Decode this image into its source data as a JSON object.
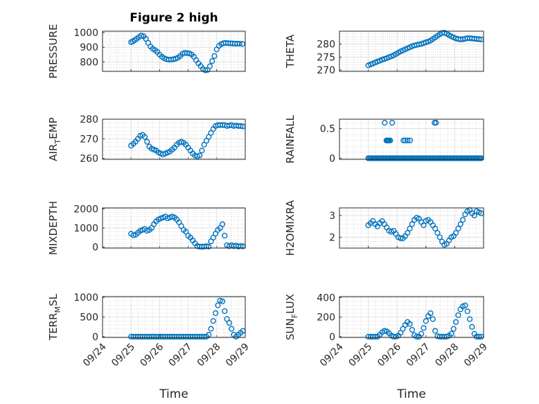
{
  "chart_data": [
    {
      "type": "scatter",
      "title": "Figure 2 high",
      "ylabel": "PRESSURE",
      "ylabel_sub": "",
      "ylabel_tail": "",
      "ylim": [
        735,
        1010
      ],
      "yticks": [
        800,
        900,
        1000
      ],
      "yticklabels": [
        "800",
        "900",
        "1000"
      ],
      "show_xticks": false,
      "xlabel": "",
      "x": [
        25.0,
        25.06,
        25.12,
        25.2,
        25.28,
        25.36,
        25.44,
        25.52,
        25.6,
        25.68,
        25.76,
        25.84,
        25.92,
        26.0,
        26.08,
        26.16,
        26.24,
        26.32,
        26.4,
        26.48,
        26.56,
        26.64,
        26.72,
        26.8,
        26.88,
        26.96,
        27.04,
        27.12,
        27.2,
        27.28,
        27.36,
        27.44,
        27.52,
        27.6,
        27.68,
        27.76,
        27.84,
        27.92,
        28.0,
        28.08,
        28.16,
        28.24,
        28.32,
        28.4,
        28.48,
        28.56,
        28.64,
        28.72,
        28.8,
        28.9
      ],
      "y": [
        935,
        940,
        948,
        958,
        970,
        980,
        975,
        958,
        930,
        905,
        890,
        880,
        868,
        850,
        835,
        825,
        818,
        815,
        816,
        818,
        822,
        828,
        840,
        855,
        862,
        860,
        858,
        850,
        835,
        812,
        790,
        772,
        752,
        742,
        745,
        770,
        805,
        840,
        885,
        910,
        922,
        928,
        930,
        928,
        927,
        926,
        925,
        925,
        925,
        923
      ]
    },
    {
      "type": "scatter",
      "title": "",
      "ylabel": "THETA",
      "ylabel_sub": "",
      "ylabel_tail": "",
      "ylim": [
        269.5,
        285
      ],
      "yticks": [
        270,
        275,
        280
      ],
      "yticklabels": [
        "270",
        "275",
        "280"
      ],
      "show_xticks": false,
      "xlabel": "",
      "x": [
        25.0,
        25.08,
        25.16,
        25.24,
        25.32,
        25.4,
        25.48,
        25.56,
        25.64,
        25.72,
        25.8,
        25.88,
        25.96,
        26.04,
        26.12,
        26.2,
        26.28,
        26.36,
        26.44,
        26.52,
        26.6,
        26.68,
        26.76,
        26.84,
        26.92,
        27.0,
        27.08,
        27.16,
        27.24,
        27.32,
        27.4,
        27.48,
        27.56,
        27.64,
        27.72,
        27.8,
        27.88,
        27.96,
        28.04,
        28.12,
        28.2,
        28.28,
        28.36,
        28.44,
        28.52,
        28.6,
        28.68,
        28.76,
        28.84,
        28.92
      ],
      "y": [
        271.8,
        272.2,
        272.5,
        272.9,
        273.3,
        273.6,
        274.0,
        274.3,
        274.6,
        275.0,
        275.3,
        275.7,
        276.2,
        276.7,
        277.2,
        277.6,
        278.0,
        278.4,
        278.8,
        279.2,
        279.5,
        279.7,
        279.9,
        280.1,
        280.4,
        280.7,
        281.0,
        281.4,
        282.0,
        282.6,
        283.2,
        283.8,
        284.3,
        284.4,
        284.0,
        283.5,
        283.0,
        282.6,
        282.2,
        282.0,
        281.8,
        281.9,
        282.1,
        282.3,
        282.3,
        282.2,
        282.1,
        282.0,
        281.9,
        281.8
      ]
    },
    {
      "type": "scatter",
      "title": "",
      "ylabel": "AIR",
      "ylabel_sub": "T",
      "ylabel_tail": "EMP",
      "ylim": [
        259.5,
        280
      ],
      "yticks": [
        260,
        270,
        280
      ],
      "yticklabels": [
        "260",
        "270",
        "280"
      ],
      "show_xticks": false,
      "xlabel": "",
      "x": [
        25.0,
        25.08,
        25.16,
        25.24,
        25.32,
        25.4,
        25.48,
        25.56,
        25.64,
        25.72,
        25.8,
        25.88,
        25.96,
        26.04,
        26.12,
        26.2,
        26.28,
        26.36,
        26.44,
        26.52,
        26.6,
        26.68,
        26.76,
        26.84,
        26.92,
        27.0,
        27.08,
        27.16,
        27.24,
        27.32,
        27.4,
        27.48,
        27.56,
        27.64,
        27.72,
        27.8,
        27.88,
        27.96,
        28.04,
        28.12,
        28.2,
        28.28,
        28.36,
        28.44,
        28.52,
        28.6,
        28.68,
        28.76,
        28.84,
        28.92
      ],
      "y": [
        266.5,
        267.5,
        268.5,
        270.0,
        271.5,
        272.0,
        271.0,
        268.5,
        266.0,
        265.0,
        264.5,
        264.0,
        263.0,
        262.5,
        262.0,
        262.5,
        263.0,
        263.5,
        264.5,
        265.5,
        267.0,
        268.0,
        268.5,
        268.0,
        267.0,
        265.5,
        264.0,
        262.5,
        261.5,
        261.0,
        261.5,
        264.0,
        267.0,
        269.0,
        271.0,
        273.0,
        275.0,
        276.5,
        277.0,
        277.0,
        277.0,
        277.0,
        276.5,
        276.8,
        277.0,
        276.5,
        276.8,
        276.5,
        276.5,
        276.3
      ]
    },
    {
      "type": "scatter",
      "title": "",
      "ylabel": "RAINFALL",
      "ylabel_sub": "",
      "ylabel_tail": "",
      "ylim": [
        -0.02,
        0.66
      ],
      "yticks": [
        0,
        0.5
      ],
      "yticklabels": [
        "0",
        "0.5"
      ],
      "show_xticks": false,
      "xlabel": "",
      "x": [
        25.0,
        25.04,
        25.08,
        25.12,
        25.16,
        25.2,
        25.24,
        25.28,
        25.32,
        25.36,
        25.4,
        25.44,
        25.48,
        25.52,
        25.56,
        25.6,
        25.64,
        25.68,
        25.72,
        25.76,
        25.8,
        25.84,
        25.88,
        25.92,
        25.96,
        26.0,
        26.04,
        26.08,
        26.12,
        26.16,
        26.2,
        26.24,
        26.28,
        26.32,
        26.36,
        26.4,
        26.44,
        26.48,
        26.52,
        26.56,
        26.6,
        26.64,
        26.68,
        26.72,
        26.76,
        26.8,
        26.84,
        26.88,
        26.92,
        26.96,
        27.0,
        27.04,
        27.08,
        27.12,
        27.16,
        27.2,
        27.24,
        27.28,
        27.32,
        27.36,
        27.4,
        27.44,
        27.48,
        27.52,
        27.56,
        27.6,
        27.64,
        27.68,
        27.72,
        27.76,
        27.8,
        27.84,
        27.88,
        27.92,
        27.96,
        28.0,
        28.04,
        28.08,
        28.12,
        28.16,
        28.2,
        28.24,
        28.28,
        28.32,
        28.36,
        28.4,
        28.44,
        28.48,
        28.52,
        28.56,
        28.6,
        28.64,
        28.68,
        28.72,
        28.76,
        28.8,
        28.84,
        28.88,
        28.92,
        25.57,
        25.83,
        25.63,
        25.66,
        25.69,
        25.72,
        25.76,
        26.22,
        26.28,
        26.36,
        26.45,
        27.3,
        27.35
      ],
      "y": [
        0,
        0,
        0,
        0,
        0,
        0,
        0,
        0,
        0,
        0,
        0,
        0,
        0,
        0,
        0,
        0,
        0,
        0,
        0,
        0,
        0,
        0,
        0,
        0,
        0,
        0,
        0,
        0,
        0,
        0,
        0,
        0,
        0,
        0,
        0,
        0,
        0,
        0,
        0,
        0,
        0,
        0,
        0,
        0,
        0,
        0,
        0,
        0,
        0,
        0,
        0,
        0,
        0,
        0,
        0,
        0,
        0,
        0,
        0,
        0,
        0,
        0,
        0,
        0,
        0,
        0,
        0,
        0,
        0,
        0,
        0,
        0,
        0,
        0,
        0,
        0,
        0,
        0,
        0,
        0,
        0,
        0,
        0,
        0,
        0,
        0,
        0,
        0,
        0,
        0,
        0,
        0,
        0,
        0,
        0,
        0,
        0,
        0,
        0,
        0.6,
        0.6,
        0.3,
        0.3,
        0.3,
        0.3,
        0.3,
        0.3,
        0.3,
        0.3,
        0.3,
        0.6,
        0.6
      ]
    },
    {
      "type": "scatter",
      "title": "",
      "ylabel": "MIXDEPTH",
      "ylabel_sub": "",
      "ylabel_tail": "",
      "ylim": [
        -50,
        2050
      ],
      "yticks": [
        0,
        1000,
        2000
      ],
      "yticklabels": [
        "0",
        "1000",
        "2000"
      ],
      "show_xticks": false,
      "xlabel": "",
      "x": [
        25.0,
        25.08,
        25.16,
        25.24,
        25.32,
        25.4,
        25.48,
        25.56,
        25.64,
        25.72,
        25.8,
        25.88,
        25.96,
        26.04,
        26.12,
        26.2,
        26.28,
        26.36,
        26.44,
        26.52,
        26.6,
        26.68,
        26.76,
        26.84,
        26.92,
        27.0,
        27.08,
        27.16,
        27.24,
        27.32,
        27.4,
        27.48,
        27.56,
        27.64,
        27.72,
        27.8,
        27.88,
        27.96,
        28.04,
        28.12,
        28.2,
        28.28,
        28.36,
        28.44,
        28.52,
        28.6,
        28.68,
        28.76,
        28.84,
        28.92
      ],
      "y": [
        700,
        620,
        650,
        750,
        850,
        900,
        950,
        850,
        900,
        1000,
        1200,
        1350,
        1450,
        1500,
        1550,
        1600,
        1500,
        1550,
        1600,
        1550,
        1450,
        1300,
        1100,
        900,
        800,
        600,
        500,
        350,
        200,
        50,
        30,
        20,
        30,
        50,
        30,
        300,
        500,
        700,
        900,
        1000,
        1200,
        600,
        100,
        50,
        100,
        50,
        80,
        30,
        60,
        40
      ]
    },
    {
      "type": "scatter",
      "title": "",
      "ylabel": "H2OMIXRA",
      "ylabel_sub": "",
      "ylabel_tail": "",
      "ylim": [
        1.5,
        3.35
      ],
      "yticks": [
        2,
        3
      ],
      "yticklabels": [
        "2",
        "3"
      ],
      "show_xticks": false,
      "xlabel": "",
      "x": [
        25.0,
        25.08,
        25.16,
        25.24,
        25.32,
        25.4,
        25.48,
        25.56,
        25.64,
        25.72,
        25.8,
        25.88,
        25.96,
        26.04,
        26.12,
        26.2,
        26.28,
        26.36,
        26.44,
        26.52,
        26.6,
        26.68,
        26.76,
        26.84,
        26.92,
        27.0,
        27.08,
        27.16,
        27.24,
        27.32,
        27.4,
        27.48,
        27.56,
        27.64,
        27.72,
        27.8,
        27.88,
        27.96,
        28.04,
        28.12,
        28.2,
        28.28,
        28.36,
        28.44,
        28.52,
        28.6,
        28.68,
        28.76,
        28.84,
        28.92
      ],
      "y": [
        2.55,
        2.65,
        2.75,
        2.6,
        2.5,
        2.65,
        2.75,
        2.6,
        2.45,
        2.3,
        2.25,
        2.3,
        2.15,
        2.0,
        1.95,
        1.95,
        2.05,
        2.2,
        2.4,
        2.6,
        2.8,
        2.9,
        2.85,
        2.7,
        2.55,
        2.75,
        2.8,
        2.7,
        2.55,
        2.4,
        2.2,
        2.0,
        1.8,
        1.65,
        1.7,
        1.85,
        2.0,
        2.05,
        2.2,
        2.4,
        2.6,
        2.8,
        3.05,
        3.2,
        3.25,
        3.1,
        3.0,
        3.2,
        3.15,
        3.1
      ]
    },
    {
      "type": "scatter",
      "title": "",
      "ylabel": "TERR",
      "ylabel_sub": "M",
      "ylabel_tail": "SL",
      "ylim": [
        -20,
        1020
      ],
      "yticks": [
        0,
        500,
        1000
      ],
      "yticklabels": [
        "0",
        "500",
        "1000"
      ],
      "show_xticks": true,
      "xlabel": "Time",
      "xticklabels": [
        "09/24",
        "09/25",
        "09/26",
        "09/27",
        "09/28",
        "09/29"
      ],
      "xlim": [
        24,
        29
      ],
      "x": [
        25.0,
        25.08,
        25.16,
        25.24,
        25.32,
        25.4,
        25.48,
        25.56,
        25.64,
        25.72,
        25.8,
        25.88,
        25.96,
        26.04,
        26.12,
        26.2,
        26.28,
        26.36,
        26.44,
        26.52,
        26.6,
        26.68,
        26.76,
        26.84,
        26.92,
        27.0,
        27.08,
        27.16,
        27.24,
        27.32,
        27.4,
        27.48,
        27.56,
        27.64,
        27.72,
        27.8,
        27.88,
        27.96,
        28.04,
        28.12,
        28.2,
        28.28,
        28.36,
        28.44,
        28.52,
        28.6,
        28.68,
        28.76,
        28.84,
        28.92
      ],
      "y": [
        0,
        0,
        0,
        0,
        0,
        0,
        0,
        0,
        0,
        0,
        0,
        0,
        0,
        0,
        0,
        0,
        0,
        0,
        0,
        0,
        0,
        0,
        0,
        0,
        0,
        0,
        0,
        0,
        0,
        0,
        0,
        0,
        0,
        0,
        50,
        200,
        400,
        600,
        800,
        920,
        900,
        650,
        450,
        350,
        200,
        50,
        0,
        50,
        100,
        150
      ]
    },
    {
      "type": "scatter",
      "title": "",
      "ylabel": "SUN",
      "ylabel_sub": "F",
      "ylabel_tail": "LUX",
      "ylim": [
        -8,
        410
      ],
      "yticks": [
        0,
        200,
        400
      ],
      "yticklabels": [
        "0",
        "200",
        "400"
      ],
      "show_xticks": true,
      "xlabel": "Time",
      "xticklabels": [
        "09/24",
        "09/25",
        "09/26",
        "09/27",
        "09/28",
        "09/29"
      ],
      "xlim": [
        24,
        29
      ],
      "x": [
        25.0,
        25.08,
        25.16,
        25.24,
        25.32,
        25.4,
        25.48,
        25.56,
        25.64,
        25.72,
        25.8,
        25.88,
        25.96,
        26.04,
        26.12,
        26.2,
        26.28,
        26.36,
        26.44,
        26.52,
        26.6,
        26.68,
        26.76,
        26.84,
        26.92,
        27.0,
        27.08,
        27.16,
        27.24,
        27.32,
        27.4,
        27.48,
        27.56,
        27.64,
        27.72,
        27.8,
        27.88,
        27.96,
        28.04,
        28.12,
        28.2,
        28.28,
        28.36,
        28.44,
        28.52,
        28.6,
        28.68,
        28.76,
        28.84,
        28.92
      ],
      "y": [
        0,
        0,
        0,
        0,
        0,
        20,
        45,
        60,
        55,
        35,
        10,
        0,
        0,
        10,
        40,
        80,
        120,
        150,
        130,
        70,
        15,
        0,
        0,
        30,
        90,
        160,
        210,
        240,
        180,
        60,
        5,
        0,
        0,
        0,
        0,
        10,
        30,
        80,
        150,
        220,
        280,
        310,
        320,
        260,
        180,
        100,
        30,
        0,
        0,
        0
      ]
    }
  ]
}
